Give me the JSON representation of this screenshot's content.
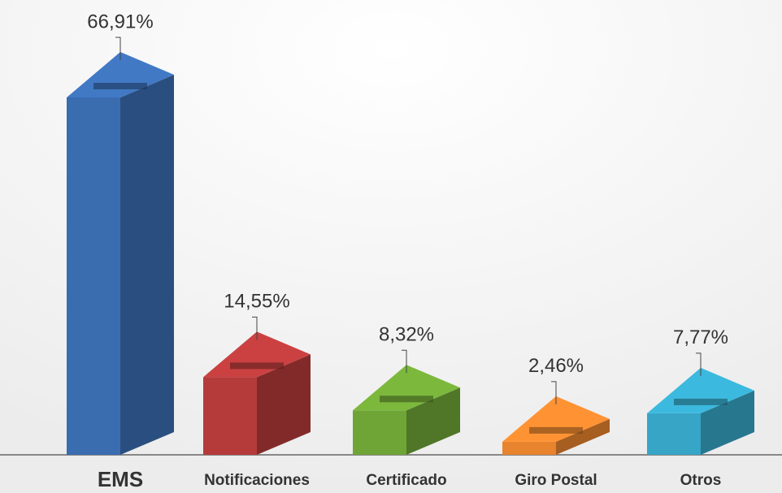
{
  "chart_data": {
    "type": "bar",
    "categories": [
      "EMS",
      "Notificaciones",
      "Certificado",
      "Giro Postal",
      "Otros"
    ],
    "values": [
      66.91,
      14.55,
      8.32,
      2.46,
      7.77
    ],
    "value_labels": [
      "66,91%",
      "14,55%",
      "8,32%",
      "2,46%",
      "7,77%"
    ],
    "colors": [
      "#3a6cb0",
      "#b53a3a",
      "#6fa436",
      "#e8832e",
      "#36a5c6"
    ]
  }
}
